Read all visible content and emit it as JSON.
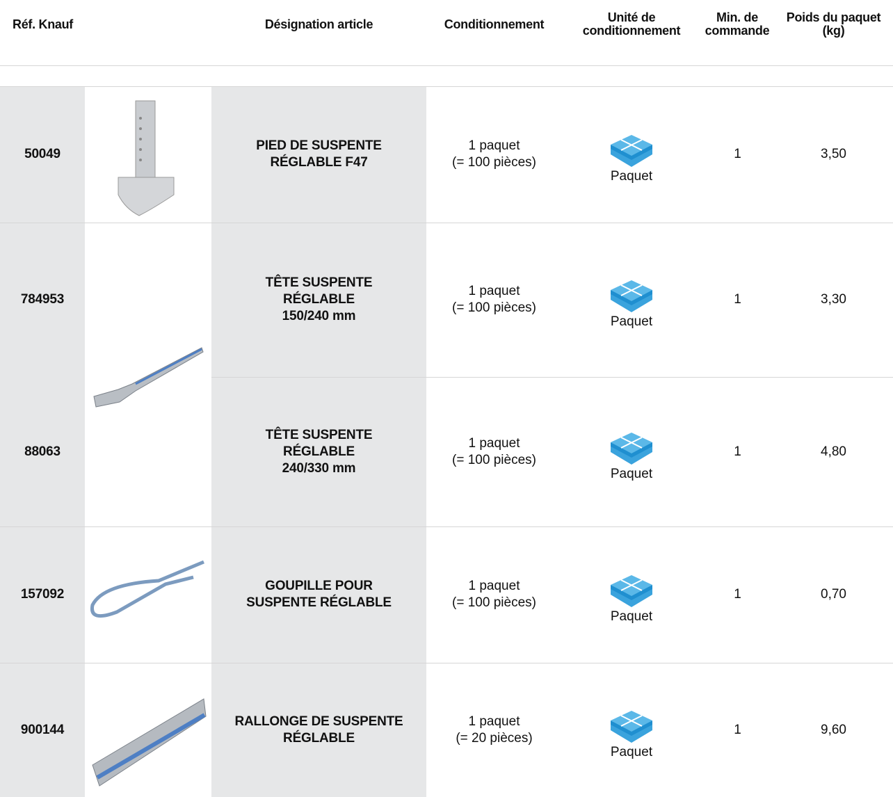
{
  "header": {
    "columns": [
      "Réf. Knauf",
      "Désignation article",
      "Conditionnement",
      [
        "Unité de",
        "conditionnement"
      ],
      [
        "Min. de",
        "commande"
      ],
      [
        "Poids du paquet",
        "(kg)"
      ]
    ]
  },
  "table": {
    "rows": [
      {
        "ref": "50049",
        "designation": [
          "PIED DE SUSPENTE",
          "RÉGLABLE F47"
        ],
        "packaging": [
          "1 paquet",
          "(= 100 pièces)"
        ],
        "unit": "Paquet",
        "min": "1",
        "weight": "3,50"
      },
      {
        "ref": "784953",
        "designation": [
          "TÊTE SUSPENTE",
          "RÉGLABLE",
          "150/240 mm"
        ],
        "packaging": [
          "1 paquet",
          "(= 100 pièces)"
        ],
        "unit": "Paquet",
        "min": "1",
        "weight": "3,30"
      },
      {
        "ref": "88063",
        "designation": [
          "TÊTE SUSPENTE",
          "RÉGLABLE",
          "240/330 mm"
        ],
        "packaging": [
          "1 paquet",
          "(= 100 pièces)"
        ],
        "unit": "Paquet",
        "min": "1",
        "weight": "4,80"
      },
      {
        "ref": "157092",
        "designation": [
          "GOUPILLE POUR",
          "SUSPENTE RÉGLABLE"
        ],
        "packaging": [
          "1 paquet",
          "(= 100 pièces)"
        ],
        "unit": "Paquet",
        "min": "1",
        "weight": "0,70"
      },
      {
        "ref": "900144",
        "designation": [
          "RALLONGE DE SUSPENTE",
          "RÉGLABLE"
        ],
        "packaging": [
          "1 paquet",
          "(= 20 pièces)"
        ],
        "unit": "Paquet",
        "min": "1",
        "weight": "9,60"
      }
    ]
  }
}
